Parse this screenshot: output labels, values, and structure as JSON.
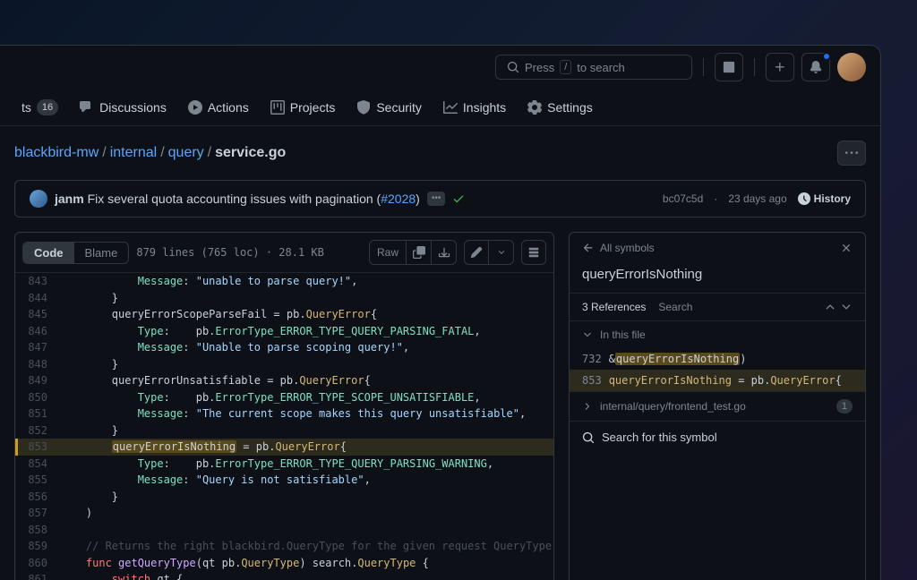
{
  "search": {
    "prefix": "Press",
    "key": "/",
    "suffix": "to search"
  },
  "nav": {
    "partial_tab_suffix": "ts",
    "partial_count": "16",
    "discussions": "Discussions",
    "actions": "Actions",
    "projects": "Projects",
    "security": "Security",
    "insights": "Insights",
    "settings": "Settings"
  },
  "breadcrumb": {
    "a": "blackbird-mw",
    "b": "internal",
    "c": "query",
    "file": "service.go"
  },
  "commit": {
    "author": "janm",
    "message_pre": "Fix several quota accounting issues with pagination (",
    "pr": "#2028",
    "message_post": ")",
    "sha": "bc07c5d",
    "age": "23 days ago",
    "history": "History"
  },
  "toolbar": {
    "code": "Code",
    "blame": "Blame",
    "info": "879 lines (765 loc) · 28.1 KB",
    "raw": "Raw"
  },
  "code": {
    "lines": [
      {
        "no": "843",
        "indent": 3,
        "hl": false,
        "tokens": [
          {
            "c": "t-key",
            "t": "Message"
          },
          {
            "c": "t-punc",
            "t": ": "
          },
          {
            "c": "t-str",
            "t": "\"unable to parse query!\""
          },
          {
            "c": "t-punc",
            "t": ","
          }
        ]
      },
      {
        "no": "844",
        "indent": 2,
        "hl": false,
        "tokens": [
          {
            "c": "t-punc",
            "t": "}"
          }
        ]
      },
      {
        "no": "845",
        "indent": 2,
        "hl": false,
        "tokens": [
          {
            "c": "t-ident",
            "t": "queryErrorScopeParseFail "
          },
          {
            "c": "t-punc",
            "t": "= "
          },
          {
            "c": "t-ident",
            "t": "pb."
          },
          {
            "c": "t-type",
            "t": "QueryError"
          },
          {
            "c": "t-punc",
            "t": "{"
          }
        ]
      },
      {
        "no": "846",
        "indent": 3,
        "hl": false,
        "tokens": [
          {
            "c": "t-key",
            "t": "Type"
          },
          {
            "c": "t-punc",
            "t": ":    "
          },
          {
            "c": "t-ident",
            "t": "pb."
          },
          {
            "c": "t-key",
            "t": "ErrorType_ERROR_TYPE_QUERY_PARSING_FATAL"
          },
          {
            "c": "t-punc",
            "t": ","
          }
        ]
      },
      {
        "no": "847",
        "indent": 3,
        "hl": false,
        "tokens": [
          {
            "c": "t-key",
            "t": "Message"
          },
          {
            "c": "t-punc",
            "t": ": "
          },
          {
            "c": "t-str",
            "t": "\"Unable to parse scoping query!\""
          },
          {
            "c": "t-punc",
            "t": ","
          }
        ]
      },
      {
        "no": "848",
        "indent": 2,
        "hl": false,
        "tokens": [
          {
            "c": "t-punc",
            "t": "}"
          }
        ]
      },
      {
        "no": "849",
        "indent": 2,
        "hl": false,
        "tokens": [
          {
            "c": "t-ident",
            "t": "queryErrorUnsatisfiable "
          },
          {
            "c": "t-punc",
            "t": "= "
          },
          {
            "c": "t-ident",
            "t": "pb."
          },
          {
            "c": "t-type",
            "t": "QueryError"
          },
          {
            "c": "t-punc",
            "t": "{"
          }
        ]
      },
      {
        "no": "850",
        "indent": 3,
        "hl": false,
        "tokens": [
          {
            "c": "t-key",
            "t": "Type"
          },
          {
            "c": "t-punc",
            "t": ":    "
          },
          {
            "c": "t-ident",
            "t": "pb."
          },
          {
            "c": "t-key",
            "t": "ErrorType_ERROR_TYPE_SCOPE_UNSATISFIABLE"
          },
          {
            "c": "t-punc",
            "t": ","
          }
        ]
      },
      {
        "no": "851",
        "indent": 3,
        "hl": false,
        "tokens": [
          {
            "c": "t-key",
            "t": "Message"
          },
          {
            "c": "t-punc",
            "t": ": "
          },
          {
            "c": "t-str",
            "t": "\"The current scope makes this query unsatisfiable\""
          },
          {
            "c": "t-punc",
            "t": ","
          }
        ]
      },
      {
        "no": "852",
        "indent": 2,
        "hl": false,
        "tokens": [
          {
            "c": "t-punc",
            "t": "}"
          }
        ]
      },
      {
        "no": "853",
        "indent": 2,
        "hl": true,
        "tokens": [
          {
            "c": "t-ident sym-hl",
            "t": "queryErrorIsNothing"
          },
          {
            "c": "t-punc",
            "t": " = "
          },
          {
            "c": "t-ident",
            "t": "pb."
          },
          {
            "c": "t-type",
            "t": "QueryError"
          },
          {
            "c": "t-punc",
            "t": "{"
          }
        ]
      },
      {
        "no": "854",
        "indent": 3,
        "hl": false,
        "tokens": [
          {
            "c": "t-key",
            "t": "Type"
          },
          {
            "c": "t-punc",
            "t": ":    "
          },
          {
            "c": "t-ident",
            "t": "pb."
          },
          {
            "c": "t-key",
            "t": "ErrorType_ERROR_TYPE_QUERY_PARSING_WARNING"
          },
          {
            "c": "t-punc",
            "t": ","
          }
        ]
      },
      {
        "no": "855",
        "indent": 3,
        "hl": false,
        "tokens": [
          {
            "c": "t-key",
            "t": "Message"
          },
          {
            "c": "t-punc",
            "t": ": "
          },
          {
            "c": "t-str",
            "t": "\"Query is not satisfiable\""
          },
          {
            "c": "t-punc",
            "t": ","
          }
        ]
      },
      {
        "no": "856",
        "indent": 2,
        "hl": false,
        "tokens": [
          {
            "c": "t-punc",
            "t": "}"
          }
        ]
      },
      {
        "no": "857",
        "indent": 1,
        "hl": false,
        "tokens": [
          {
            "c": "t-punc",
            "t": ")"
          }
        ]
      },
      {
        "no": "858",
        "indent": 0,
        "hl": false,
        "tokens": []
      },
      {
        "no": "859",
        "indent": 1,
        "hl": false,
        "tokens": [
          {
            "c": "t-comment",
            "t": "// Returns the right blackbird.QueryType for the given request QueryType."
          }
        ]
      },
      {
        "no": "860",
        "indent": 1,
        "hl": false,
        "tokens": [
          {
            "c": "t-kw",
            "t": "func "
          },
          {
            "c": "t-func",
            "t": "getQueryType"
          },
          {
            "c": "t-punc",
            "t": "(qt pb."
          },
          {
            "c": "t-type",
            "t": "QueryType"
          },
          {
            "c": "t-punc",
            "t": ") search."
          },
          {
            "c": "t-type",
            "t": "QueryType"
          },
          {
            "c": "t-punc",
            "t": " {"
          }
        ]
      },
      {
        "no": "861",
        "indent": 2,
        "hl": false,
        "tokens": [
          {
            "c": "t-kw",
            "t": "switch"
          },
          {
            "c": "t-punc",
            "t": " qt {"
          }
        ]
      }
    ]
  },
  "symbol": {
    "back": "All symbols",
    "name": "queryErrorIsNothing",
    "refs_label": "3 References",
    "search_label": "Search",
    "in_this_file": "In this file",
    "ref1": {
      "ln": "732",
      "pre": "&",
      "sym": "queryErrorIsNothing",
      "post": ")"
    },
    "ref2": {
      "ln": "853",
      "pre": "",
      "sym": "queryErrorIsNothing",
      "post": " = pb.",
      "tail_type": "QueryError",
      "tail": "{"
    },
    "other_file": "internal/query/frontend_test.go",
    "other_count": "1",
    "search_symbol": "Search for this symbol"
  },
  "colors": {
    "bg": "#0d1117",
    "border": "#30363d",
    "text": "#c9d1d9",
    "muted": "#7d8590",
    "link": "#58a6ff",
    "accent_hl": "#2d2a1e",
    "accent_border": "#d29922"
  }
}
